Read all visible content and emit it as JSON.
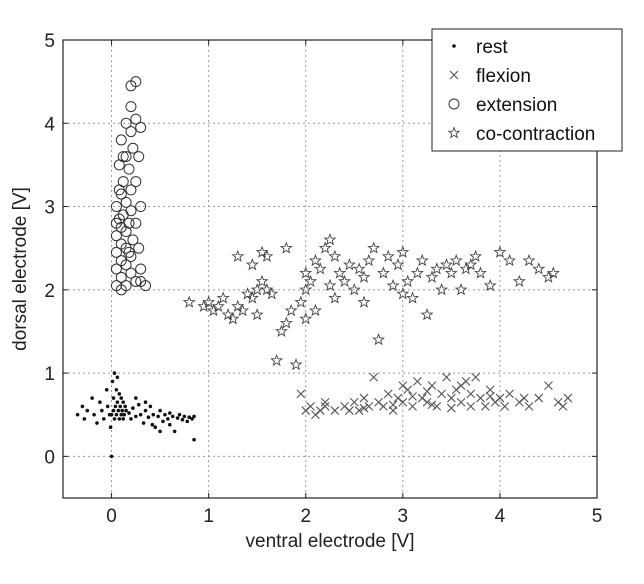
{
  "chart_data": {
    "type": "scatter",
    "xlabel": "ventral electrode [V]",
    "ylabel": "dorsal electrode [V]",
    "xlim": [
      -0.5,
      5
    ],
    "ylim": [
      -0.5,
      5
    ],
    "xticks": [
      "0",
      "1",
      "2",
      "3",
      "4",
      "5"
    ],
    "yticks": [
      "0",
      "1",
      "2",
      "3",
      "4",
      "5"
    ],
    "grid": true,
    "legend_position": "top-right",
    "series": [
      {
        "name": "rest",
        "marker": "dot",
        "points": [
          [
            -0.35,
            0.5
          ],
          [
            -0.3,
            0.6
          ],
          [
            -0.28,
            0.45
          ],
          [
            -0.25,
            0.55
          ],
          [
            -0.2,
            0.7
          ],
          [
            -0.18,
            0.5
          ],
          [
            -0.15,
            0.4
          ],
          [
            -0.12,
            0.65
          ],
          [
            -0.1,
            0.55
          ],
          [
            -0.08,
            0.45
          ],
          [
            -0.05,
            0.8
          ],
          [
            -0.04,
            0.6
          ],
          [
            -0.02,
            0.5
          ],
          [
            -0.01,
            0.35
          ],
          [
            0.0,
            0.0
          ],
          [
            0.0,
            0.5
          ],
          [
            0.01,
            0.9
          ],
          [
            0.02,
            0.55
          ],
          [
            0.02,
            0.7
          ],
          [
            0.03,
            0.45
          ],
          [
            0.03,
            1.0
          ],
          [
            0.04,
            0.6
          ],
          [
            0.05,
            0.8
          ],
          [
            0.05,
            0.5
          ],
          [
            0.06,
            0.95
          ],
          [
            0.06,
            0.65
          ],
          [
            0.07,
            0.55
          ],
          [
            0.08,
            0.75
          ],
          [
            0.08,
            0.45
          ],
          [
            0.09,
            0.6
          ],
          [
            0.1,
            0.5
          ],
          [
            0.1,
            0.7
          ],
          [
            0.11,
            0.55
          ],
          [
            0.12,
            0.45
          ],
          [
            0.12,
            0.65
          ],
          [
            0.13,
            0.5
          ],
          [
            0.14,
            0.6
          ],
          [
            0.15,
            0.55
          ],
          [
            0.18,
            0.52
          ],
          [
            0.2,
            0.45
          ],
          [
            0.22,
            0.58
          ],
          [
            0.25,
            0.48
          ],
          [
            0.28,
            0.62
          ],
          [
            0.3,
            0.5
          ],
          [
            0.33,
            0.4
          ],
          [
            0.35,
            0.55
          ],
          [
            0.38,
            0.47
          ],
          [
            0.4,
            0.6
          ],
          [
            0.43,
            0.5
          ],
          [
            0.45,
            0.35
          ],
          [
            0.48,
            0.48
          ],
          [
            0.5,
            0.55
          ],
          [
            0.53,
            0.42
          ],
          [
            0.55,
            0.5
          ],
          [
            0.58,
            0.45
          ],
          [
            0.6,
            0.52
          ],
          [
            0.63,
            0.48
          ],
          [
            0.65,
            0.3
          ],
          [
            0.68,
            0.46
          ],
          [
            0.7,
            0.5
          ],
          [
            0.73,
            0.44
          ],
          [
            0.75,
            0.48
          ],
          [
            0.78,
            0.42
          ],
          [
            0.8,
            0.47
          ],
          [
            0.83,
            0.45
          ],
          [
            0.85,
            0.2
          ],
          [
            0.85,
            0.48
          ],
          [
            0.5,
            0.3
          ],
          [
            0.35,
            0.65
          ],
          [
            0.25,
            0.7
          ],
          [
            0.42,
            0.38
          ],
          [
            0.6,
            0.38
          ]
        ]
      },
      {
        "name": "flexion",
        "marker": "x",
        "points": [
          [
            1.95,
            0.75
          ],
          [
            2.0,
            0.55
          ],
          [
            2.05,
            0.6
          ],
          [
            2.1,
            0.5
          ],
          [
            2.15,
            0.55
          ],
          [
            2.2,
            0.6
          ],
          [
            2.3,
            0.55
          ],
          [
            2.4,
            0.6
          ],
          [
            2.5,
            0.65
          ],
          [
            2.55,
            0.55
          ],
          [
            2.6,
            0.7
          ],
          [
            2.65,
            0.6
          ],
          [
            2.7,
            0.95
          ],
          [
            2.75,
            0.65
          ],
          [
            2.8,
            0.6
          ],
          [
            2.85,
            0.75
          ],
          [
            2.9,
            0.62
          ],
          [
            2.95,
            0.7
          ],
          [
            3.0,
            0.65
          ],
          [
            3.05,
            0.8
          ],
          [
            3.1,
            0.6
          ],
          [
            3.15,
            0.9
          ],
          [
            3.2,
            0.7
          ],
          [
            3.25,
            0.65
          ],
          [
            3.3,
            0.85
          ],
          [
            3.35,
            0.6
          ],
          [
            3.4,
            0.75
          ],
          [
            3.45,
            0.95
          ],
          [
            3.5,
            0.7
          ],
          [
            3.55,
            0.8
          ],
          [
            3.6,
            0.65
          ],
          [
            3.65,
            0.9
          ],
          [
            3.7,
            0.75
          ],
          [
            3.75,
            0.95
          ],
          [
            3.8,
            0.7
          ],
          [
            3.85,
            0.6
          ],
          [
            3.9,
            0.8
          ],
          [
            3.95,
            0.65
          ],
          [
            4.0,
            0.7
          ],
          [
            4.05,
            0.6
          ],
          [
            4.1,
            0.75
          ],
          [
            4.2,
            0.65
          ],
          [
            4.3,
            0.6
          ],
          [
            4.4,
            0.7
          ],
          [
            4.5,
            0.85
          ],
          [
            4.6,
            0.65
          ],
          [
            4.7,
            0.7
          ],
          [
            2.2,
            0.65
          ],
          [
            2.45,
            0.55
          ],
          [
            2.9,
            0.55
          ],
          [
            3.1,
            0.72
          ],
          [
            3.3,
            0.62
          ],
          [
            3.5,
            0.58
          ],
          [
            3.7,
            0.6
          ],
          [
            3.9,
            0.72
          ],
          [
            2.6,
            0.58
          ],
          [
            3.0,
            0.85
          ],
          [
            3.25,
            0.78
          ],
          [
            3.6,
            0.85
          ],
          [
            4.25,
            0.7
          ],
          [
            4.65,
            0.6
          ]
        ]
      },
      {
        "name": "extension",
        "marker": "circle",
        "points": [
          [
            0.2,
            4.45
          ],
          [
            0.25,
            4.5
          ],
          [
            0.2,
            4.2
          ],
          [
            0.15,
            4.0
          ],
          [
            0.25,
            4.05
          ],
          [
            0.2,
            3.9
          ],
          [
            0.1,
            3.8
          ],
          [
            0.22,
            3.7
          ],
          [
            0.15,
            3.6
          ],
          [
            0.08,
            3.5
          ],
          [
            0.18,
            3.45
          ],
          [
            0.12,
            3.3
          ],
          [
            0.2,
            3.2
          ],
          [
            0.1,
            3.15
          ],
          [
            0.15,
            3.05
          ],
          [
            0.05,
            3.0
          ],
          [
            0.2,
            2.95
          ],
          [
            0.12,
            2.9
          ],
          [
            0.08,
            2.85
          ],
          [
            0.18,
            2.8
          ],
          [
            0.1,
            2.75
          ],
          [
            0.15,
            2.7
          ],
          [
            0.05,
            2.65
          ],
          [
            0.22,
            2.6
          ],
          [
            0.1,
            2.55
          ],
          [
            0.15,
            2.5
          ],
          [
            0.05,
            2.45
          ],
          [
            0.2,
            2.4
          ],
          [
            0.1,
            2.35
          ],
          [
            0.15,
            2.3
          ],
          [
            0.05,
            2.25
          ],
          [
            0.2,
            2.2
          ],
          [
            0.1,
            2.15
          ],
          [
            0.25,
            2.1
          ],
          [
            0.05,
            2.05
          ],
          [
            0.15,
            2.05
          ],
          [
            0.3,
            2.1
          ],
          [
            0.35,
            2.05
          ],
          [
            0.3,
            2.25
          ],
          [
            0.28,
            2.5
          ],
          [
            0.25,
            2.8
          ],
          [
            0.3,
            3.0
          ],
          [
            0.25,
            3.3
          ],
          [
            0.28,
            3.6
          ],
          [
            0.3,
            3.95
          ],
          [
            0.1,
            2.0
          ],
          [
            0.08,
            3.2
          ],
          [
            0.12,
            3.6
          ],
          [
            0.05,
            2.8
          ],
          [
            0.18,
            2.45
          ]
        ]
      },
      {
        "name": "co-contraction",
        "marker": "star",
        "points": [
          [
            0.8,
            1.85
          ],
          [
            0.95,
            1.8
          ],
          [
            1.0,
            1.85
          ],
          [
            1.05,
            1.75
          ],
          [
            1.1,
            1.8
          ],
          [
            1.15,
            1.9
          ],
          [
            1.2,
            1.7
          ],
          [
            1.25,
            1.65
          ],
          [
            1.3,
            1.8
          ],
          [
            1.35,
            1.75
          ],
          [
            1.4,
            1.95
          ],
          [
            1.45,
            1.9
          ],
          [
            1.5,
            2.0
          ],
          [
            1.55,
            2.1
          ],
          [
            1.6,
            2.0
          ],
          [
            1.65,
            1.95
          ],
          [
            1.7,
            1.15
          ],
          [
            1.75,
            1.5
          ],
          [
            1.8,
            1.6
          ],
          [
            1.85,
            1.75
          ],
          [
            1.9,
            1.1
          ],
          [
            1.95,
            1.85
          ],
          [
            2.0,
            2.0
          ],
          [
            1.3,
            2.4
          ],
          [
            1.45,
            2.3
          ],
          [
            1.55,
            2.45
          ],
          [
            1.8,
            2.5
          ],
          [
            2.0,
            2.2
          ],
          [
            2.05,
            2.1
          ],
          [
            2.1,
            2.35
          ],
          [
            2.15,
            2.25
          ],
          [
            2.2,
            2.5
          ],
          [
            2.25,
            2.6
          ],
          [
            2.3,
            2.4
          ],
          [
            2.35,
            2.2
          ],
          [
            2.4,
            2.1
          ],
          [
            2.45,
            2.3
          ],
          [
            2.5,
            2.0
          ],
          [
            2.55,
            2.25
          ],
          [
            2.6,
            2.15
          ],
          [
            2.65,
            2.35
          ],
          [
            2.7,
            2.5
          ],
          [
            2.75,
            1.4
          ],
          [
            2.8,
            2.2
          ],
          [
            2.85,
            2.4
          ],
          [
            2.9,
            2.05
          ],
          [
            2.95,
            2.3
          ],
          [
            3.0,
            2.45
          ],
          [
            3.05,
            2.1
          ],
          [
            3.1,
            1.9
          ],
          [
            3.15,
            2.2
          ],
          [
            3.2,
            2.35
          ],
          [
            3.25,
            1.7
          ],
          [
            3.3,
            2.15
          ],
          [
            3.35,
            2.25
          ],
          [
            3.4,
            2.0
          ],
          [
            3.45,
            2.3
          ],
          [
            3.5,
            2.2
          ],
          [
            3.55,
            2.35
          ],
          [
            3.6,
            2.0
          ],
          [
            3.65,
            2.25
          ],
          [
            3.7,
            2.3
          ],
          [
            3.8,
            2.2
          ],
          [
            3.9,
            2.05
          ],
          [
            4.0,
            2.45
          ],
          [
            4.1,
            2.35
          ],
          [
            4.2,
            2.1
          ],
          [
            4.3,
            2.35
          ],
          [
            4.4,
            2.25
          ],
          [
            4.5,
            2.15
          ],
          [
            4.55,
            2.2
          ],
          [
            2.1,
            1.75
          ],
          [
            2.0,
            1.65
          ],
          [
            2.3,
            1.9
          ],
          [
            2.6,
            1.85
          ],
          [
            1.5,
            1.7
          ],
          [
            1.6,
            2.4
          ],
          [
            3.0,
            1.95
          ],
          [
            3.75,
            2.4
          ],
          [
            2.25,
            2.05
          ]
        ]
      }
    ]
  }
}
